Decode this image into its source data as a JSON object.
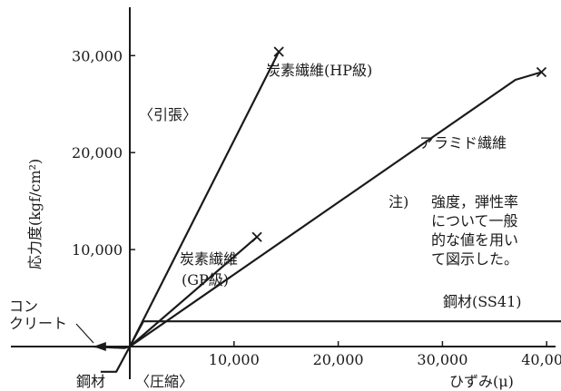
{
  "chart_data": {
    "type": "line",
    "xlabel": "ひずみ(μ)",
    "ylabel": "応力度(kgf/cm²)",
    "xlim": [
      -5500,
      44000
    ],
    "ylim": [
      -3000,
      35000
    ],
    "x_ticks": [
      {
        "value": 10000,
        "label": "10,000"
      },
      {
        "value": 20000,
        "label": "20,000"
      },
      {
        "value": 30000,
        "label": "30,000"
      },
      {
        "value": 40000,
        "label": "40,000"
      }
    ],
    "y_ticks": [
      {
        "value": 10000,
        "label": "10,000"
      },
      {
        "value": 20000,
        "label": "20,000"
      },
      {
        "value": 30000,
        "label": "30,000"
      }
    ],
    "region_labels": {
      "tension": "〈引張〉",
      "compression": "〈圧縮〉"
    },
    "series": [
      {
        "name": "炭素繊維(HP級)",
        "points": [
          [
            0,
            0
          ],
          [
            14300,
            30400
          ]
        ],
        "end_marker": "x"
      },
      {
        "name": "アラミド繊維",
        "points": [
          [
            0,
            0
          ],
          [
            37000,
            27500
          ],
          [
            39500,
            28300
          ]
        ],
        "end_marker": "x"
      },
      {
        "name": "炭素繊維(GP級)",
        "points": [
          [
            0,
            0
          ],
          [
            12200,
            11300
          ]
        ],
        "end_marker": "x"
      },
      {
        "name": "鋼材(SS41)",
        "points": [
          [
            0,
            0
          ],
          [
            1300,
            2600
          ],
          [
            44000,
            2600
          ]
        ]
      },
      {
        "name": "コンクリート",
        "points": [
          [
            0,
            0
          ],
          [
            -500,
            -150
          ],
          [
            -2000,
            -80
          ],
          [
            -3500,
            0
          ]
        ],
        "end_marker": "triangle"
      },
      {
        "name": "鋼材",
        "points": [
          [
            0,
            0
          ],
          [
            -1300,
            -2600
          ],
          [
            -2800,
            -2600
          ]
        ]
      }
    ],
    "annotations": {
      "note_mark": "注)",
      "note_lines": [
        "強度，弾性率",
        "について一般",
        "的な値を用い",
        "て図示した。"
      ],
      "gp_label_lines": [
        "炭素繊維",
        "(GP級)"
      ],
      "concrete_label_lines": [
        "コン",
        "クリート"
      ]
    }
  }
}
